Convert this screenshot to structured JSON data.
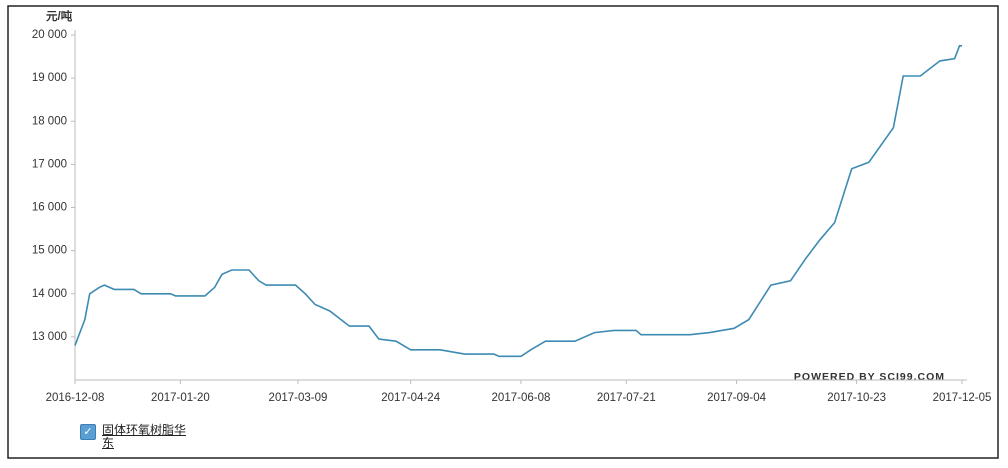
{
  "chart_data": {
    "type": "line",
    "y_label": "元/吨",
    "credit": "POWERED BY SCI99.COM",
    "x": [
      "2016-12-08",
      "2016-12-12",
      "2016-12-14",
      "2016-12-18",
      "2016-12-20",
      "2016-12-24",
      "2017-01-01",
      "2017-01-04",
      "2017-01-16",
      "2017-01-18",
      "2017-01-30",
      "2017-02-03",
      "2017-02-06",
      "2017-02-10",
      "2017-02-17",
      "2017-02-21",
      "2017-02-24",
      "2017-03-08",
      "2017-03-12",
      "2017-03-16",
      "2017-03-22",
      "2017-03-30",
      "2017-04-07",
      "2017-04-11",
      "2017-04-18",
      "2017-04-24",
      "2017-05-06",
      "2017-05-16",
      "2017-05-28",
      "2017-05-30",
      "2017-06-08",
      "2017-06-12",
      "2017-06-18",
      "2017-06-30",
      "2017-07-08",
      "2017-07-16",
      "2017-07-25",
      "2017-07-27",
      "2017-08-16",
      "2017-08-24",
      "2017-09-03",
      "2017-09-09",
      "2017-09-18",
      "2017-09-26",
      "2017-10-02",
      "2017-10-08",
      "2017-10-14",
      "2017-10-21",
      "2017-10-28",
      "2017-11-07",
      "2017-11-11",
      "2017-11-18",
      "2017-11-26",
      "2017-12-02",
      "2017-12-04",
      "2017-12-05"
    ],
    "series": [
      {
        "name": "固体环氧树脂华东",
        "color": "#3d8bb3",
        "values": [
          12800,
          13400,
          14000,
          14150,
          14200,
          14100,
          14100,
          14000,
          14000,
          13950,
          13950,
          14150,
          14450,
          14550,
          14550,
          14300,
          14200,
          14200,
          14000,
          13750,
          13600,
          13250,
          13250,
          12950,
          12900,
          12700,
          12700,
          12600,
          12600,
          12550,
          12550,
          12700,
          12900,
          12900,
          13100,
          13150,
          13150,
          13050,
          13050,
          13100,
          13200,
          13400,
          14200,
          14300,
          14800,
          15250,
          15650,
          16900,
          17050,
          17850,
          19050,
          19050,
          19400,
          19450,
          19750,
          19750
        ]
      }
    ],
    "xlim": [
      "2016-12-08",
      "2017-12-05"
    ],
    "xticks": [
      "2016-12-08",
      "2017-01-20",
      "2017-03-09",
      "2017-04-24",
      "2017-06-08",
      "2017-07-21",
      "2017-09-04",
      "2017-10-23",
      "2017-12-05"
    ],
    "ylim": [
      12000,
      20000
    ],
    "yticks": [
      {
        "value": 13000,
        "label": "13 000"
      },
      {
        "value": 14000,
        "label": "14 000"
      },
      {
        "value": 15000,
        "label": "15 000"
      },
      {
        "value": 16000,
        "label": "16 000"
      },
      {
        "value": 17000,
        "label": "17 000"
      },
      {
        "value": 18000,
        "label": "18 000"
      },
      {
        "value": 19000,
        "label": "19 000"
      },
      {
        "value": 20000,
        "label": "20 000"
      }
    ],
    "grid": false
  }
}
